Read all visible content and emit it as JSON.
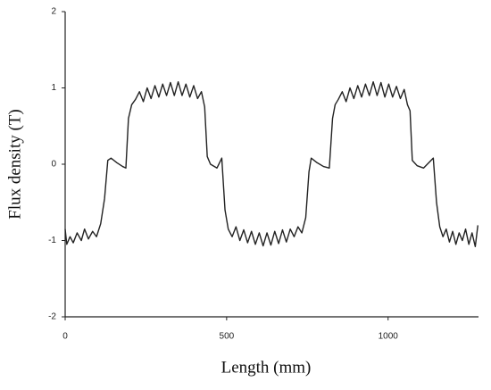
{
  "chart_data": {
    "type": "line",
    "x_label": "Length (mm)",
    "y_label": "Flux density (T)",
    "color": "#222222",
    "x": [
      0,
      5,
      15,
      25,
      37,
      50,
      60,
      72,
      85,
      97,
      110,
      122,
      132,
      142,
      160,
      178,
      188,
      196,
      206,
      218,
      230,
      242,
      254,
      266,
      278,
      290,
      302,
      314,
      326,
      338,
      350,
      362,
      374,
      386,
      398,
      410,
      422,
      432,
      440,
      450,
      470,
      485,
      495,
      505,
      517,
      529,
      541,
      553,
      565,
      577,
      589,
      601,
      613,
      625,
      637,
      649,
      661,
      673,
      685,
      697,
      709,
      721,
      733,
      745,
      755,
      762,
      780,
      800,
      818,
      828,
      836,
      846,
      858,
      870,
      882,
      894,
      906,
      918,
      930,
      942,
      954,
      966,
      978,
      990,
      1002,
      1014,
      1026,
      1038,
      1050,
      1060,
      1068,
      1075,
      1090,
      1110,
      1140,
      1150,
      1160,
      1170,
      1180,
      1190,
      1200,
      1210,
      1220,
      1230,
      1240,
      1250,
      1260,
      1270,
      1278
    ],
    "values": [
      -0.85,
      -1.05,
      -0.95,
      -1.03,
      -0.9,
      -1.0,
      -0.85,
      -0.98,
      -0.88,
      -0.95,
      -0.78,
      -0.45,
      0.05,
      0.08,
      0.02,
      -0.03,
      -0.05,
      0.6,
      0.78,
      0.85,
      0.95,
      0.82,
      1.0,
      0.86,
      1.03,
      0.88,
      1.05,
      0.9,
      1.07,
      0.9,
      1.08,
      0.9,
      1.05,
      0.88,
      1.03,
      0.86,
      0.95,
      0.75,
      0.1,
      0.0,
      -0.05,
      0.08,
      -0.6,
      -0.85,
      -0.95,
      -0.82,
      -1.0,
      -0.86,
      -1.03,
      -0.88,
      -1.05,
      -0.9,
      -1.07,
      -0.9,
      -1.06,
      -0.88,
      -1.04,
      -0.86,
      -1.02,
      -0.85,
      -0.95,
      -0.82,
      -0.9,
      -0.7,
      -0.1,
      0.08,
      0.02,
      -0.03,
      -0.05,
      0.6,
      0.78,
      0.85,
      0.95,
      0.82,
      1.0,
      0.86,
      1.03,
      0.88,
      1.05,
      0.9,
      1.08,
      0.9,
      1.07,
      0.88,
      1.05,
      0.88,
      1.02,
      0.86,
      0.98,
      0.78,
      0.7,
      0.05,
      -0.02,
      -0.05,
      0.08,
      -0.5,
      -0.82,
      -0.95,
      -0.85,
      -1.02,
      -0.88,
      -1.05,
      -0.9,
      -1.0,
      -0.85,
      -1.05,
      -0.9,
      -1.08,
      -0.8
    ],
    "xlim": [
      0,
      1280
    ],
    "xticks": [
      0,
      500,
      1000
    ],
    "ylim": [
      -2,
      2
    ],
    "yticks": [
      -2,
      -1,
      0,
      1,
      2
    ],
    "grid": false
  }
}
